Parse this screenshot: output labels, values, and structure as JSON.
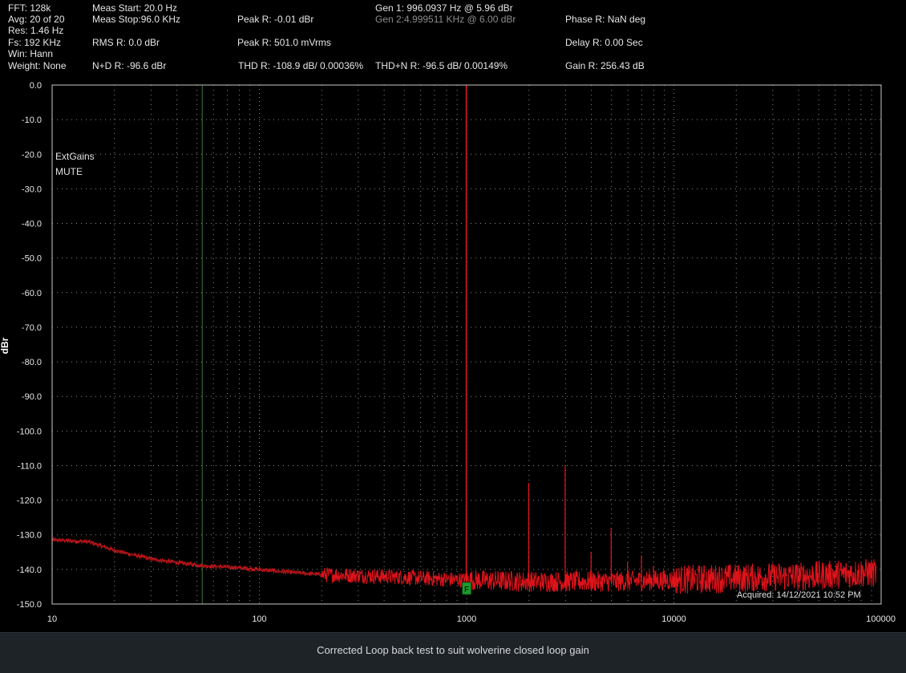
{
  "header": {
    "col1": [
      "FFT: 128k",
      "Avg: 20 of 20",
      "Res: 1.46 Hz",
      "Fs: 192 KHz",
      "Win: Hann",
      "Weight: None"
    ],
    "meas_start": "Meas Start: 20.0 Hz",
    "meas_stop": "Meas Stop:96.0 KHz",
    "rms": "RMS R: 0.0 dBr",
    "nd": "N+D R: -96.6 dBr",
    "peak_dbr": "Peak R: -0.01 dBr",
    "peak_vrms": "Peak R: 501.0 mVrms",
    "thd": "THD R: -108.9 dB/ 0.00036%",
    "gen1": "Gen 1: 996.0937 Hz @ 5.96  dBr",
    "gen2": "Gen 2:4.999511 KHz @ 6.00  dBr",
    "thdn": "THD+N R: -96.5 dB/ 0.00149%",
    "phase": "Phase R: NaN deg",
    "delay": "Delay R: 0.00 Sec",
    "gain": "Gain R: 256.43 dB"
  },
  "annotations": {
    "line1": "ExtGains",
    "line2": "MUTE",
    "acquired": "Acquired: 14/12/2021  10:52 PM",
    "marker": "F"
  },
  "footer": {
    "caption": "Corrected Loop back test to suit wolverine closed loop gain"
  },
  "colors": {
    "trace": "#e8141c",
    "trace_dark": "#9c1418",
    "grid": "#8a8a8a",
    "green_line": "#3a7a3a",
    "marker_fill": "#1e9a2e"
  },
  "chart_data": {
    "type": "line",
    "xscale": "log",
    "xlim": [
      10,
      100000
    ],
    "ylim": [
      -150,
      0
    ],
    "ylabel": "dBr",
    "xlabel": "",
    "x_ticks": [
      "10",
      "100",
      "1000",
      "10000",
      "100000"
    ],
    "y_ticks": [
      "0.0",
      "-10.0",
      "-20.0",
      "-30.0",
      "-40.0",
      "-50.0",
      "-60.0",
      "-70.0",
      "-80.0",
      "-90.0",
      "-100.0",
      "-110.0",
      "-120.0",
      "-130.0",
      "-140.0",
      "-150.0"
    ],
    "grid": true,
    "vertical_marker_hz": 53,
    "series": [
      {
        "noise_floor": {
          "x": [
            10,
            15,
            20,
            30,
            40,
            55,
            80,
            120,
            200,
            400,
            900,
            2000,
            5000,
            10000,
            20000,
            40000,
            60000,
            80000,
            95000
          ],
          "y": [
            -131.5,
            -132,
            -134.5,
            -137,
            -138,
            -139,
            -139.5,
            -140.5,
            -141.5,
            -142,
            -143,
            -143.5,
            -143.5,
            -143,
            -142.5,
            -142,
            -141.5,
            -141,
            -141
          ]
        },
        "harmonics": {
          "x": [
            996,
            1992,
            2988,
            3984,
            4980,
            5976,
            6972,
            7968
          ],
          "y": [
            -0.01,
            -115,
            -110,
            -135,
            -128,
            -138,
            -136,
            -139
          ]
        }
      }
    ]
  }
}
